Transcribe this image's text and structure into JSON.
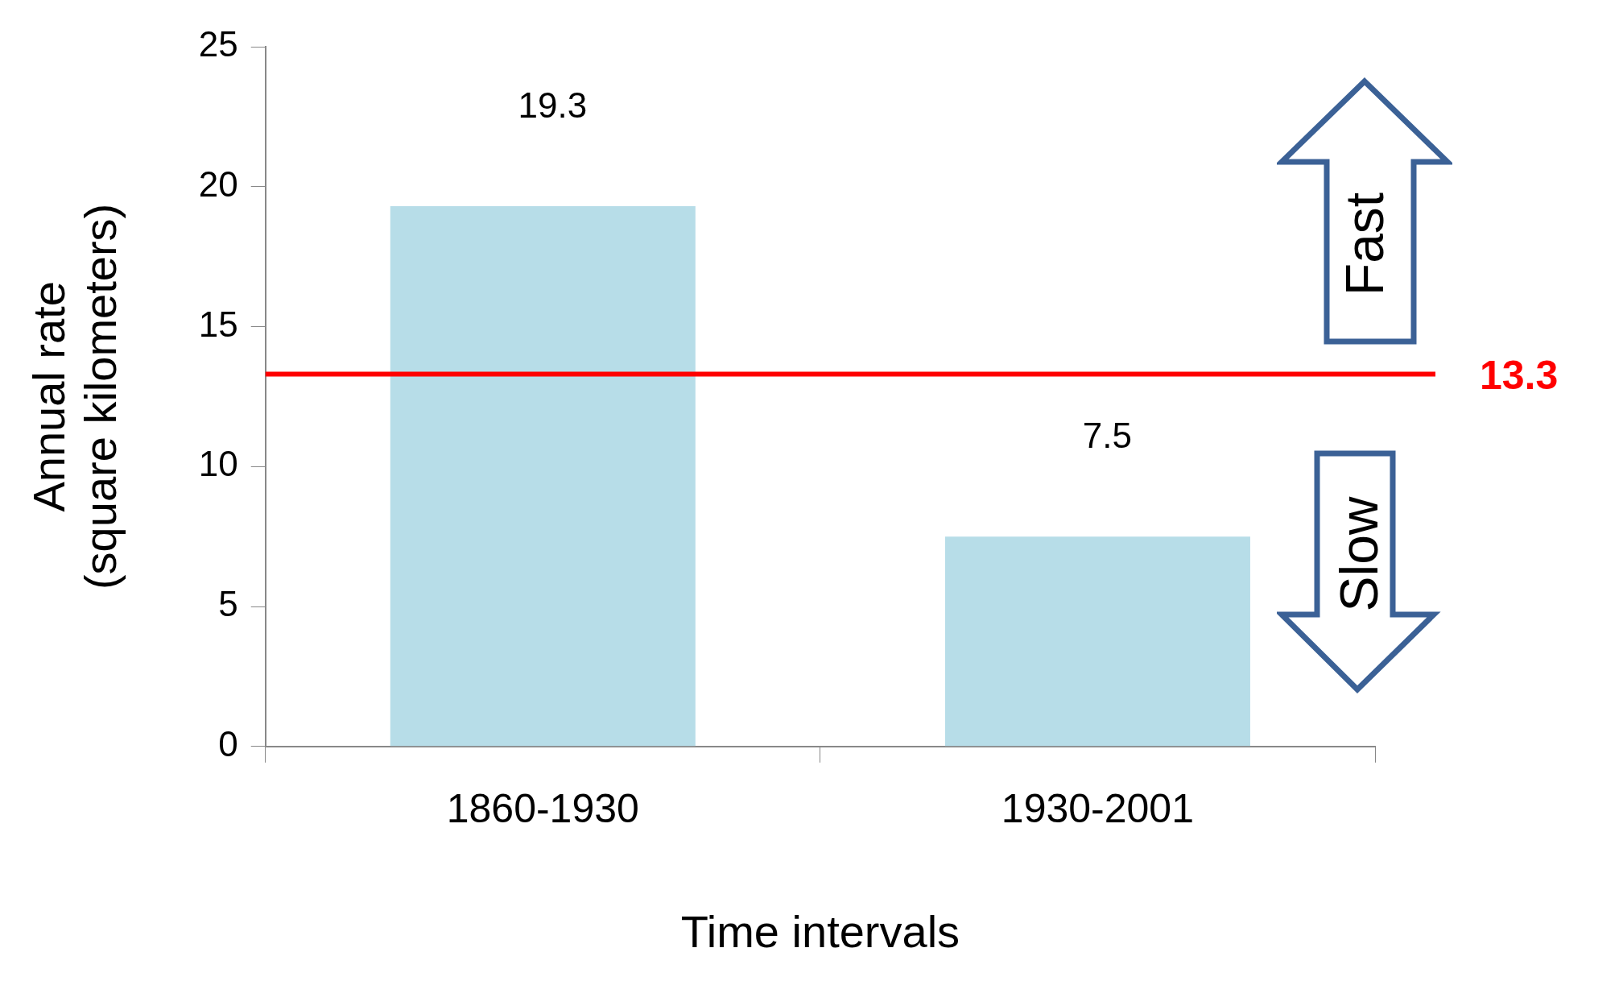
{
  "chart_data": {
    "type": "bar",
    "xlabel": "Time intervals",
    "ylabel": "Annual rate\n(square kilometers)",
    "categories": [
      "1860-1930",
      "1930-2001"
    ],
    "values": [
      19.3,
      7.5
    ],
    "color": "#b7dde8",
    "ylim": [
      0,
      25
    ],
    "yticks": [
      0,
      5,
      10,
      15,
      20,
      25
    ],
    "grid": false,
    "legend": false,
    "data_labels": true,
    "ref_lines": [
      {
        "axis": "y",
        "value": 13.3,
        "label": "13.3",
        "color": "#ff0000"
      }
    ],
    "annotations": [
      "Fast",
      "Slow"
    ]
  }
}
